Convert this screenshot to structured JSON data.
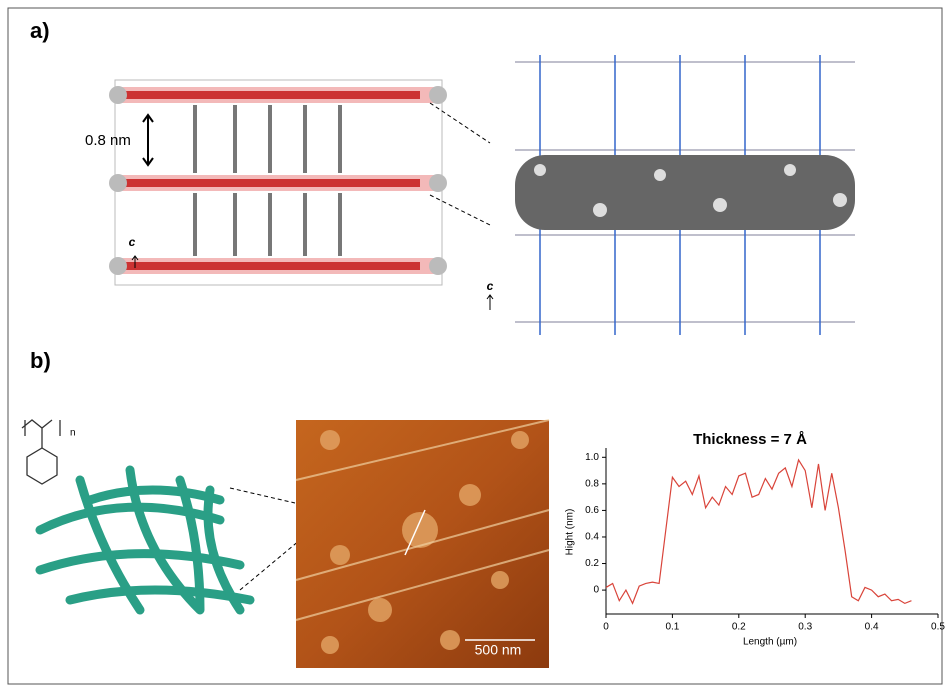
{
  "panel_a": {
    "label": "a)",
    "spacing": "0.8 nm",
    "axis_left": "c",
    "axis_right": "c"
  },
  "panel_b": {
    "label": "b)",
    "polymer_subscript": "n",
    "scale_bar": "500 nm"
  },
  "chart_data": {
    "type": "line",
    "title": "Thickness = 7 Å",
    "x_label": "Length (µm)",
    "y_label": "Hight (nm)",
    "x": [
      0,
      0.01,
      0.02,
      0.03,
      0.04,
      0.05,
      0.06,
      0.07,
      0.08,
      0.09,
      0.1,
      0.11,
      0.12,
      0.13,
      0.14,
      0.15,
      0.16,
      0.17,
      0.18,
      0.19,
      0.2,
      0.21,
      0.22,
      0.23,
      0.24,
      0.25,
      0.26,
      0.27,
      0.28,
      0.29,
      0.3,
      0.31,
      0.32,
      0.33,
      0.34,
      0.35,
      0.36,
      0.37,
      0.38,
      0.39,
      0.4,
      0.41,
      0.42,
      0.43,
      0.44,
      0.45,
      0.46
    ],
    "series": [
      {
        "color": "#d9443a",
        "values": [
          0.02,
          0.05,
          -0.08,
          0.0,
          -0.1,
          0.03,
          0.05,
          0.06,
          0.05,
          0.45,
          0.85,
          0.78,
          0.82,
          0.72,
          0.86,
          0.62,
          0.7,
          0.64,
          0.78,
          0.72,
          0.86,
          0.88,
          0.7,
          0.72,
          0.84,
          0.76,
          0.88,
          0.92,
          0.78,
          0.98,
          0.9,
          0.62,
          0.95,
          0.6,
          0.88,
          0.62,
          0.3,
          -0.05,
          -0.08,
          0.02,
          0.0,
          -0.05,
          -0.03,
          -0.08,
          -0.07,
          -0.1,
          -0.08
        ]
      }
    ],
    "xlim": [
      0,
      0.5
    ],
    "xticks": [
      0,
      0.1,
      0.2,
      0.3,
      0.4,
      0.5
    ],
    "ylim": [
      -0.18,
      1.07
    ],
    "yticks": [
      0,
      0.2,
      0.4,
      0.6,
      0.8,
      {
        "value": 1.0,
        "label": "1.0"
      }
    ]
  }
}
